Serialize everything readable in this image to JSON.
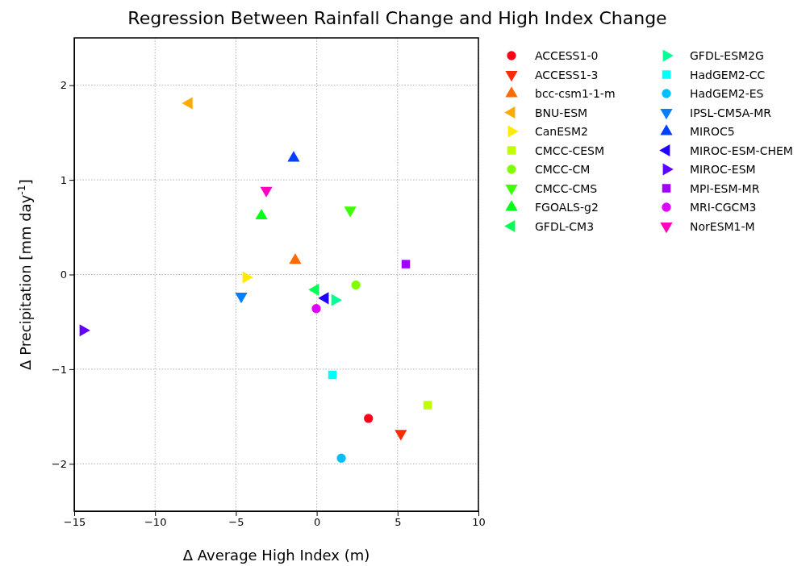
{
  "chart_data": {
    "type": "scatter",
    "title": "Regression Between Rainfall Change and High Index Change",
    "xlabel": "Δ Average High Index (m)",
    "ylabel": "Δ Precipitation [mm day$^{-1}$]",
    "xlim": [
      -15,
      10
    ],
    "ylim": [
      -2.5,
      2.5
    ],
    "xticks": [
      {
        "value": -15,
        "label": "−15"
      },
      {
        "value": -10,
        "label": "−10"
      },
      {
        "value": -5,
        "label": "−5"
      },
      0,
      5,
      10
    ],
    "yticks": [
      {
        "value": -2,
        "label": "−2"
      },
      {
        "value": -1,
        "label": "−1"
      },
      0,
      1,
      2
    ],
    "grid": true,
    "legend": "top right",
    "series": [
      {
        "name": "ACCESS1-0",
        "color": "#ff0018",
        "marker": "circle",
        "x": [
          3.2
        ],
        "values": [
          -1.52
        ]
      },
      {
        "name": "ACCESS1-3",
        "color": "#ff2b00",
        "marker": "triangle-down",
        "x": [
          5.2
        ],
        "values": [
          -1.68
        ]
      },
      {
        "name": "bcc-csm1-1-m",
        "color": "#ff6a00",
        "marker": "triangle",
        "x": [
          -1.33
        ],
        "values": [
          0.15
        ]
      },
      {
        "name": "BNU-ESM",
        "color": "#ffaa00",
        "marker": "triangle-left",
        "x": [
          -7.9
        ],
        "values": [
          1.81
        ]
      },
      {
        "name": "CanESM2",
        "color": "#ffea00",
        "marker": "triangle-right",
        "x": [
          -4.37
        ],
        "values": [
          -0.03
        ]
      },
      {
        "name": "CMCC-CESM",
        "color": "#c0ff00",
        "marker": "square",
        "x": [
          6.86
        ],
        "values": [
          -1.38
        ]
      },
      {
        "name": "CMCC-CM",
        "color": "#80ff00",
        "marker": "circle",
        "x": [
          2.42
        ],
        "values": [
          -0.11
        ]
      },
      {
        "name": "CMCC-CMS",
        "color": "#40ff00",
        "marker": "triangle-down",
        "x": [
          2.07
        ],
        "values": [
          0.68
        ]
      },
      {
        "name": "FGOALS-g2",
        "color": "#00ff15",
        "marker": "triangle",
        "x": [
          -3.42
        ],
        "values": [
          0.62
        ]
      },
      {
        "name": "GFDL-CM3",
        "color": "#00ff55",
        "marker": "triangle-left",
        "x": [
          -0.08
        ],
        "values": [
          -0.16
        ]
      },
      {
        "name": "GFDL-ESM2G",
        "color": "#00ff95",
        "marker": "triangle-right",
        "x": [
          1.12
        ],
        "values": [
          -0.27
        ]
      },
      {
        "name": "HadGEM2-CC",
        "color": "#00ffff",
        "marker": "square",
        "x": [
          0.97
        ],
        "values": [
          -1.06
        ]
      },
      {
        "name": "HadGEM2-ES",
        "color": "#00bfff",
        "marker": "circle",
        "x": [
          1.52
        ],
        "values": [
          -1.94
        ]
      },
      {
        "name": "IPSL-CM5A-MR",
        "color": "#0080ff",
        "marker": "triangle-down",
        "x": [
          -4.67
        ],
        "values": [
          -0.23
        ]
      },
      {
        "name": "MIROC5",
        "color": "#0040ff",
        "marker": "triangle",
        "x": [
          -1.43
        ],
        "values": [
          1.23
        ]
      },
      {
        "name": "MIROC-ESM-CHEM",
        "color": "#2000ff",
        "marker": "triangle-left",
        "x": [
          0.52
        ],
        "values": [
          -0.25
        ]
      },
      {
        "name": "MIROC-ESM",
        "color": "#6000ff",
        "marker": "triangle-right",
        "x": [
          -14.45
        ],
        "values": [
          -0.59
        ]
      },
      {
        "name": "MPI-ESM-MR",
        "color": "#a000ff",
        "marker": "square",
        "x": [
          5.51
        ],
        "values": [
          0.11
        ]
      },
      {
        "name": "MRI-CGCM3",
        "color": "#e000ff",
        "marker": "circle",
        "x": [
          -0.03
        ],
        "values": [
          -0.36
        ]
      },
      {
        "name": "NorESM1-M",
        "color": "#ff00bf",
        "marker": "triangle-down",
        "x": [
          -3.12
        ],
        "values": [
          0.89
        ]
      }
    ]
  }
}
